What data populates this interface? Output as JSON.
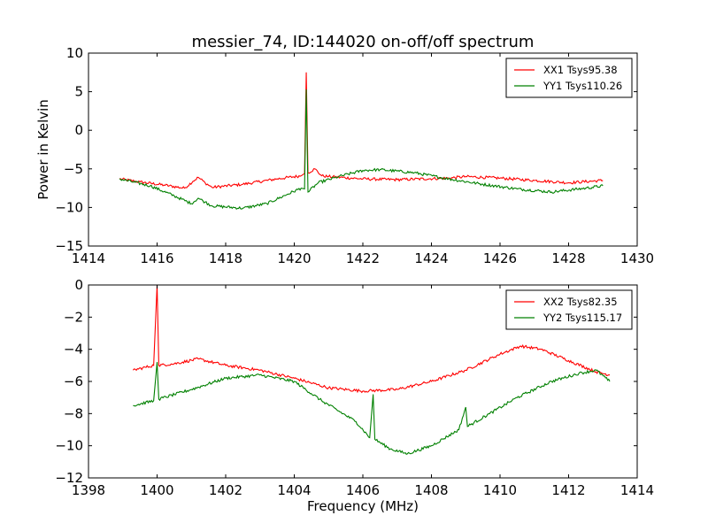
{
  "chart_data": [
    {
      "type": "line",
      "title": "messier_74, ID:144020 on-off/off spectrum",
      "xlabel": "",
      "ylabel": "Power in Kelvin",
      "xlim": [
        1414,
        1430
      ],
      "ylim": [
        -15,
        10
      ],
      "xticks": [
        1414,
        1416,
        1418,
        1420,
        1422,
        1424,
        1426,
        1428,
        1430
      ],
      "yticks": [
        10,
        5,
        0,
        -5,
        -10,
        -15
      ],
      "xtick_labels": [
        "1414",
        "1416",
        "1418",
        "1420",
        "1422",
        "1424",
        "1426",
        "1428",
        "1430"
      ],
      "ytick_labels": [
        "10",
        "5",
        "0",
        "−5",
        "−10",
        "−15"
      ],
      "grid": false,
      "legend": "top-right",
      "series": [
        {
          "name": "XX1 Tsys95.38",
          "color": "#ff0000",
          "x": [
            1414.9,
            1415.5,
            1416.2,
            1416.8,
            1417.05,
            1417.2,
            1417.4,
            1417.6,
            1418.5,
            1419.5,
            1420.2,
            1420.3,
            1420.35,
            1420.4,
            1420.6,
            1420.8,
            1421.0,
            1422.0,
            1423.0,
            1424.5,
            1425.0,
            1426.0,
            1427.0,
            1428.0,
            1429.0
          ],
          "y": [
            -6.3,
            -6.7,
            -7.1,
            -7.5,
            -6.6,
            -6.1,
            -6.8,
            -7.4,
            -7.0,
            -6.3,
            -5.9,
            -5.6,
            7.5,
            -5.5,
            -5.0,
            -5.9,
            -6.0,
            -6.3,
            -6.4,
            -6.2,
            -6.0,
            -6.2,
            -6.5,
            -6.8,
            -6.5
          ]
        },
        {
          "name": "YY1 Tsys110.26",
          "color": "#008000",
          "x": [
            1414.9,
            1415.8,
            1416.5,
            1417.0,
            1417.2,
            1417.4,
            1417.6,
            1418.5,
            1419.2,
            1419.8,
            1420.2,
            1420.3,
            1420.35,
            1420.4,
            1420.7,
            1421.3,
            1422.0,
            1422.5,
            1423.5,
            1424.5,
            1425.5,
            1426.5,
            1427.5,
            1428.5,
            1429.0
          ],
          "y": [
            -6.3,
            -7.2,
            -8.5,
            -9.5,
            -8.8,
            -9.3,
            -9.8,
            -10.1,
            -9.5,
            -8.3,
            -7.5,
            -7.6,
            5.3,
            -8.0,
            -6.8,
            -6.0,
            -5.2,
            -5.1,
            -5.5,
            -6.3,
            -7.0,
            -7.6,
            -8.0,
            -7.5,
            -7.2
          ]
        }
      ]
    },
    {
      "type": "line",
      "title": "",
      "xlabel": "Frequency (MHz)",
      "ylabel": "",
      "xlim": [
        1398,
        1414
      ],
      "ylim": [
        -12,
        0
      ],
      "xticks": [
        1398,
        1400,
        1402,
        1404,
        1406,
        1408,
        1410,
        1412,
        1414
      ],
      "yticks": [
        0,
        -2,
        -4,
        -6,
        -8,
        -10,
        -12
      ],
      "xtick_labels": [
        "1398",
        "1400",
        "1402",
        "1404",
        "1406",
        "1408",
        "1410",
        "1412",
        "1414"
      ],
      "ytick_labels": [
        "0",
        "−2",
        "−4",
        "−6",
        "−8",
        "−10",
        "−12"
      ],
      "grid": false,
      "legend": "top-right",
      "series": [
        {
          "name": "XX2 Tsys82.35",
          "color": "#ff0000",
          "x": [
            1399.3,
            1399.9,
            1400.0,
            1400.05,
            1400.5,
            1401.2,
            1402.0,
            1403.0,
            1404.0,
            1405.0,
            1406.0,
            1407.0,
            1408.0,
            1409.0,
            1410.0,
            1410.6,
            1411.2,
            1412.0,
            1412.8,
            1413.2
          ],
          "y": [
            -5.3,
            -5.0,
            0.0,
            -5.0,
            -4.9,
            -4.6,
            -5.0,
            -5.3,
            -5.8,
            -6.4,
            -6.6,
            -6.5,
            -6.0,
            -5.3,
            -4.3,
            -3.8,
            -4.0,
            -4.7,
            -5.4,
            -5.6
          ]
        },
        {
          "name": "YY2 Tsys115.17",
          "color": "#008000",
          "x": [
            1399.3,
            1399.9,
            1400.0,
            1400.05,
            1401.0,
            1402.0,
            1403.0,
            1404.0,
            1404.8,
            1405.8,
            1406.2,
            1406.3,
            1406.35,
            1406.8,
            1407.3,
            1408.0,
            1408.8,
            1409.0,
            1409.05,
            1409.7,
            1410.5,
            1411.5,
            1412.3,
            1412.8,
            1413.2
          ],
          "y": [
            -7.5,
            -7.2,
            -4.8,
            -7.1,
            -6.5,
            -5.8,
            -5.6,
            -6.0,
            -7.2,
            -8.5,
            -9.5,
            -6.8,
            -9.6,
            -10.2,
            -10.5,
            -10.0,
            -9.0,
            -7.6,
            -8.8,
            -8.0,
            -7.0,
            -6.0,
            -5.5,
            -5.3,
            -6.0
          ]
        }
      ]
    }
  ]
}
